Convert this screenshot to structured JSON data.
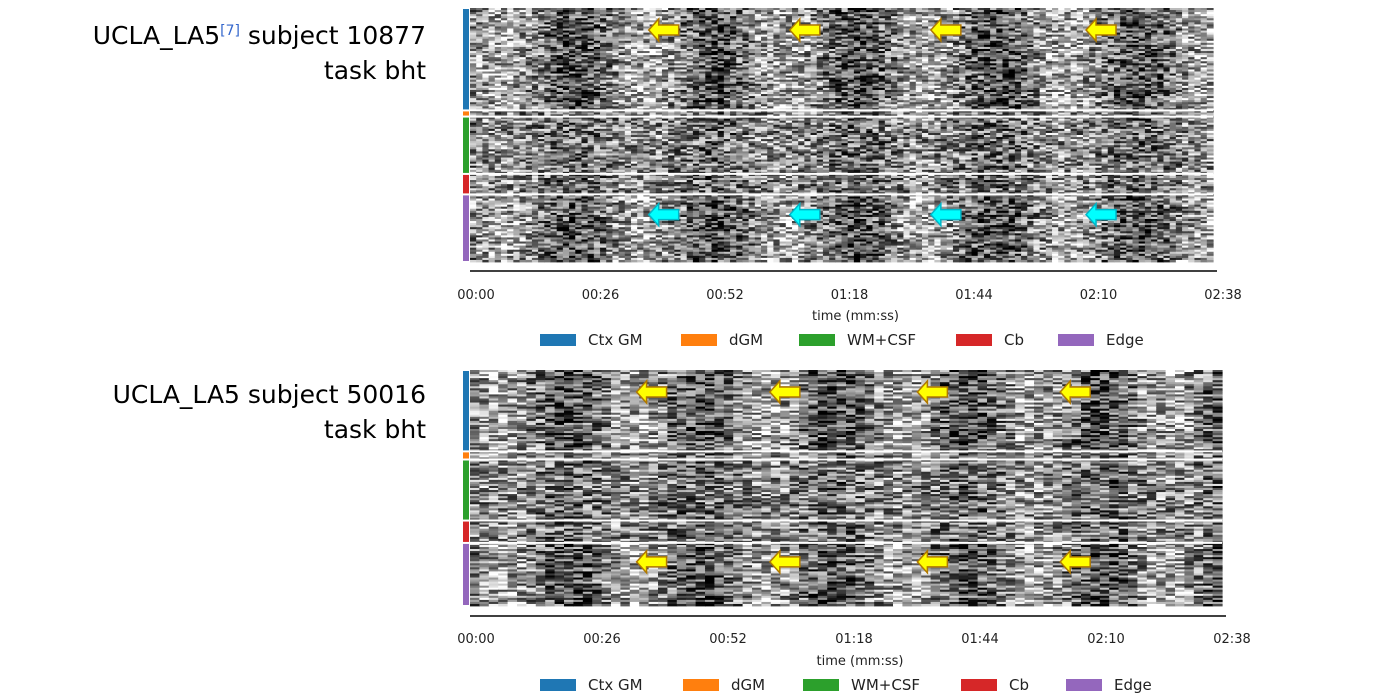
{
  "panels": [
    {
      "title_line1_pre": "UCLA_LA5",
      "title_ref": "[7]",
      "title_line1_post": " subject 10877",
      "title_line2": "task bht"
    },
    {
      "title_line1_pre": "UCLA_LA5",
      "title_ref": "",
      "title_line1_post": " subject 50016",
      "title_line2": "task bht"
    }
  ],
  "chart_data": [
    {
      "type": "heatmap",
      "title": "UCLA_LA5[7] subject 10877 task bht",
      "xlabel": "time (mm:ss)",
      "ylabel": "",
      "x_ticks": [
        "00:00",
        "00:26",
        "00:52",
        "01:18",
        "01:44",
        "02:10",
        "02:38"
      ],
      "xlim_seconds": [
        0,
        158
      ],
      "colormap": "gray",
      "row_groups": [
        {
          "name": "Ctx GM",
          "color": "#1f77b4",
          "rows": 50
        },
        {
          "name": "dGM",
          "color": "#ff7f0e",
          "rows": 3
        },
        {
          "name": "WM+CSF",
          "color": "#2ca02c",
          "rows": 28
        },
        {
          "name": "Cb",
          "color": "#d62728",
          "rows": 10
        },
        {
          "name": "Edge",
          "color": "#9467bd",
          "rows": 33
        }
      ],
      "legend": [
        "Ctx GM",
        "dGM",
        "WM+CSF",
        "Cb",
        "Edge"
      ],
      "legend_position": "bottom",
      "annotations": [
        {
          "shape": "arrow-left",
          "color": "#ffff00",
          "group": "Ctx GM",
          "x_seconds": [
            38,
            68,
            98,
            131
          ]
        },
        {
          "shape": "arrow-left",
          "color": "#00ffff",
          "group": "Edge",
          "x_seconds": [
            38,
            68,
            98,
            131
          ]
        }
      ]
    },
    {
      "type": "heatmap",
      "title": "UCLA_LA5 subject 50016 task bht",
      "xlabel": "time (mm:ss)",
      "ylabel": "",
      "x_ticks": [
        "00:00",
        "00:26",
        "00:52",
        "01:18",
        "01:44",
        "02:10",
        "02:38"
      ],
      "xlim_seconds": [
        0,
        158
      ],
      "colormap": "gray",
      "row_groups": [
        {
          "name": "Ctx GM",
          "color": "#1f77b4",
          "rows": 40
        },
        {
          "name": "dGM",
          "color": "#ff7f0e",
          "rows": 4
        },
        {
          "name": "WM+CSF",
          "color": "#2ca02c",
          "rows": 30
        },
        {
          "name": "Cb",
          "color": "#d62728",
          "rows": 11
        },
        {
          "name": "Edge",
          "color": "#9467bd",
          "rows": 31
        }
      ],
      "legend": [
        "Ctx GM",
        "dGM",
        "WM+CSF",
        "Cb",
        "Edge"
      ],
      "legend_position": "bottom",
      "annotations": [
        {
          "shape": "arrow-left",
          "color": "#ffff00",
          "group": "Ctx GM",
          "x_seconds": [
            35,
            63,
            94,
            124
          ]
        },
        {
          "shape": "arrow-left",
          "color": "#ffff00",
          "group": "Edge",
          "x_seconds": [
            35,
            63,
            94,
            124
          ]
        }
      ]
    }
  ]
}
